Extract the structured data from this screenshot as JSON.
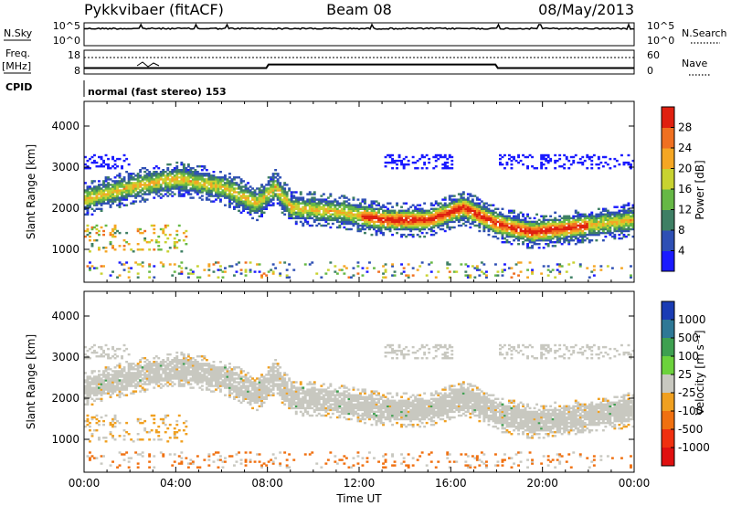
{
  "header": {
    "radar": "Pykkvibaer (fitACF)",
    "beam": "Beam 08",
    "date": "08/May/2013"
  },
  "status_panels": {
    "nsky_label": "N.Sky",
    "nsky_ticks": [
      "10^5",
      "10^0"
    ],
    "nsearch_label": "N.Search",
    "nsearch_ticks": [
      "10^5",
      "10^0"
    ],
    "freq_label_1": "Freq.",
    "freq_label_2": "[MHz]",
    "freq_ticks": [
      "18",
      "8"
    ],
    "nave_label": "Nave",
    "nave_ticks": [
      "60",
      "0"
    ],
    "cpid_label": "CPID",
    "cpid_text": "normal (fast stereo) 153",
    "freq_series": [
      {
        "t": 0.0,
        "mhz": 10.5
      },
      {
        "t": 7.95,
        "mhz": 10.5
      },
      {
        "t": 8.05,
        "mhz": 12.0
      },
      {
        "t": 17.95,
        "mhz": 12.0
      },
      {
        "t": 18.05,
        "mhz": 10.5
      },
      {
        "t": 24.0,
        "mhz": 10.5
      }
    ]
  },
  "chart_data": [
    {
      "type": "heatmap",
      "ylabel": "Slant Range [km]",
      "xlim": [
        0,
        24
      ],
      "ylim": [
        200,
        4600
      ],
      "yticks": [
        "1000",
        "2000",
        "3000",
        "4000"
      ],
      "colorbar_label": "Power [dB]",
      "colorbar_ticks": [
        "4",
        "8",
        "12",
        "16",
        "20",
        "24",
        "28"
      ],
      "colorbar_colors": [
        "#1a1aff",
        "#2e4fb4",
        "#3e7f64",
        "#66b845",
        "#c8d230",
        "#f5a623",
        "#f07020",
        "#e02010"
      ],
      "echo_band": [
        {
          "t": 0.0,
          "km": 2200
        },
        {
          "t": 2.0,
          "km": 2500
        },
        {
          "t": 4.0,
          "km": 2700
        },
        {
          "t": 6.0,
          "km": 2500
        },
        {
          "t": 7.5,
          "km": 2100
        },
        {
          "t": 8.3,
          "km": 2500
        },
        {
          "t": 9.0,
          "km": 2000
        },
        {
          "t": 11.0,
          "km": 1900
        },
        {
          "t": 13.0,
          "km": 1700
        },
        {
          "t": 15.0,
          "km": 1700
        },
        {
          "t": 16.5,
          "km": 2000
        },
        {
          "t": 18.0,
          "km": 1600
        },
        {
          "t": 19.5,
          "km": 1400
        },
        {
          "t": 21.0,
          "km": 1500
        },
        {
          "t": 24.0,
          "km": 1700
        }
      ]
    },
    {
      "type": "heatmap",
      "ylabel": "Slant Range [km]",
      "xlabel": "Time UT",
      "xlim": [
        0,
        24
      ],
      "ylim": [
        200,
        4600
      ],
      "xticks": [
        "00:00",
        "04:00",
        "08:00",
        "12:00",
        "16:00",
        "20:00",
        "00:00"
      ],
      "yticks": [
        "1000",
        "2000",
        "3000",
        "4000"
      ],
      "colorbar_label": "Velocity [m s⁻¹]",
      "colorbar_ticks": [
        "1000",
        "500",
        "100",
        "25",
        "-25",
        "-100",
        "-500",
        "-1000"
      ],
      "colorbar_colors": [
        "#1a3cb4",
        "#2e7896",
        "#3ea050",
        "#6cd23c",
        "#c8c8c0",
        "#f0a020",
        "#f07010",
        "#f03010",
        "#e01010"
      ]
    }
  ]
}
